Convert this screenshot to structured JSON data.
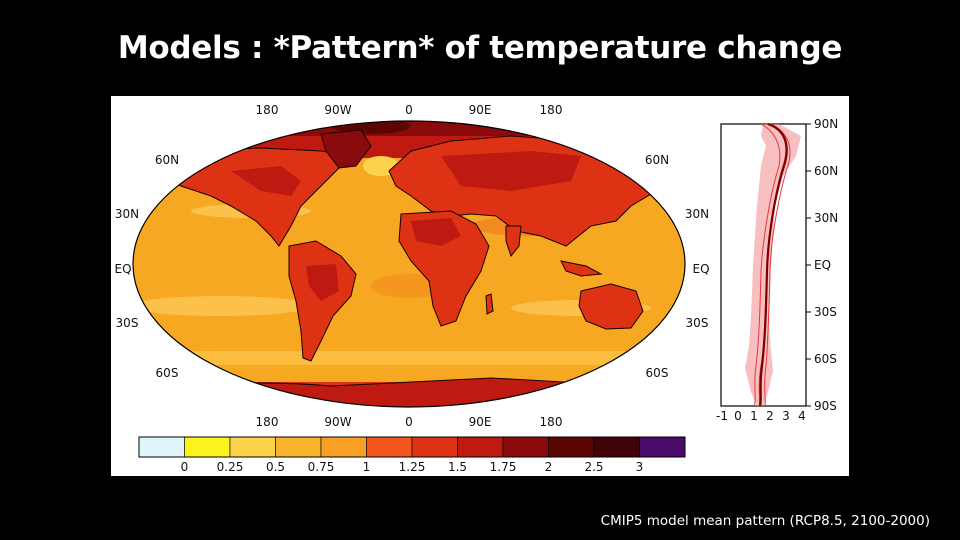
{
  "slide": {
    "title": "Models : *Pattern* of temperature change",
    "caption": "CMIP5 model mean pattern (RCP8.5, 2100-2000)"
  },
  "map": {
    "top_lon_labels": [
      "180",
      "90W",
      "0",
      "90E",
      "180"
    ],
    "bottom_lon_labels": [
      "180",
      "90W",
      "0",
      "90E",
      "180"
    ],
    "left_lat_labels": [
      "60N",
      "30N",
      "EQ",
      "30S",
      "60S"
    ],
    "right_lat_labels": [
      "60N",
      "30N",
      "EQ",
      "30S",
      "60S"
    ],
    "projection": "robinson",
    "colors": {
      "land_outline": "#1a0000",
      "ocean_base": "#f7a823"
    }
  },
  "zonal_profile": {
    "lat_labels": [
      "90N",
      "60N",
      "30N",
      "EQ",
      "30S",
      "60S",
      "90S"
    ],
    "x_tick_labels": [
      "-1",
      "0",
      "1",
      "2",
      "3",
      "4"
    ],
    "line_color": "#7a0000",
    "spread_color": "#e8363a"
  },
  "colorbar": {
    "tick_labels": [
      "0",
      "0.25",
      "0.5",
      "0.75",
      "1",
      "1.25",
      "1.5",
      "1.75",
      "2",
      "2.5",
      "3"
    ],
    "colors": [
      "#dff5fb",
      "#fbf41c",
      "#fbd24c",
      "#f8b42c",
      "#f7a023",
      "#f2551d",
      "#de3214",
      "#be1a12",
      "#8a0b0b",
      "#5c0505",
      "#400308",
      "#4a0a6a"
    ]
  }
}
